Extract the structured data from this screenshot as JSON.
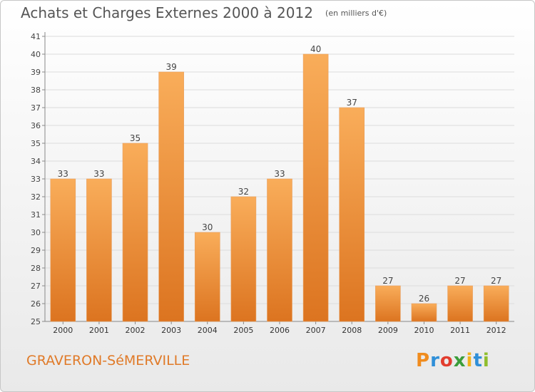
{
  "header": {
    "title": "Achats et Charges Externes 2000 à 2012",
    "unit": "(en milliers d'€)"
  },
  "footer": {
    "commune": "GRAVERON-SéMERVILLE",
    "brand": "Proxiti"
  },
  "colors": {
    "bar_light": "#f9ad5a",
    "bar_dark": "#dc7420",
    "brand_p": "#f08c1e",
    "brand_r": "#2f8fd8",
    "brand_o": "#e23d2e",
    "brand_x": "#3b9d3a",
    "brand_i": "#f2b21c",
    "brand_t": "#2f8fd8",
    "brand_i2": "#8fbe2e"
  },
  "chart_data": {
    "type": "bar",
    "categories": [
      "2000",
      "2001",
      "2002",
      "2003",
      "2004",
      "2005",
      "2006",
      "2007",
      "2008",
      "2009",
      "2010",
      "2011",
      "2012"
    ],
    "values": [
      33,
      33,
      35,
      39,
      30,
      32,
      33,
      40,
      37,
      27,
      26,
      27,
      27
    ],
    "title": "Achats et Charges Externes 2000 à 2012",
    "ylim": [
      25,
      41
    ],
    "yticks": [
      25,
      26,
      27,
      28,
      29,
      30,
      31,
      32,
      33,
      34,
      35,
      36,
      37,
      38,
      39,
      40,
      41
    ],
    "grid": true
  }
}
